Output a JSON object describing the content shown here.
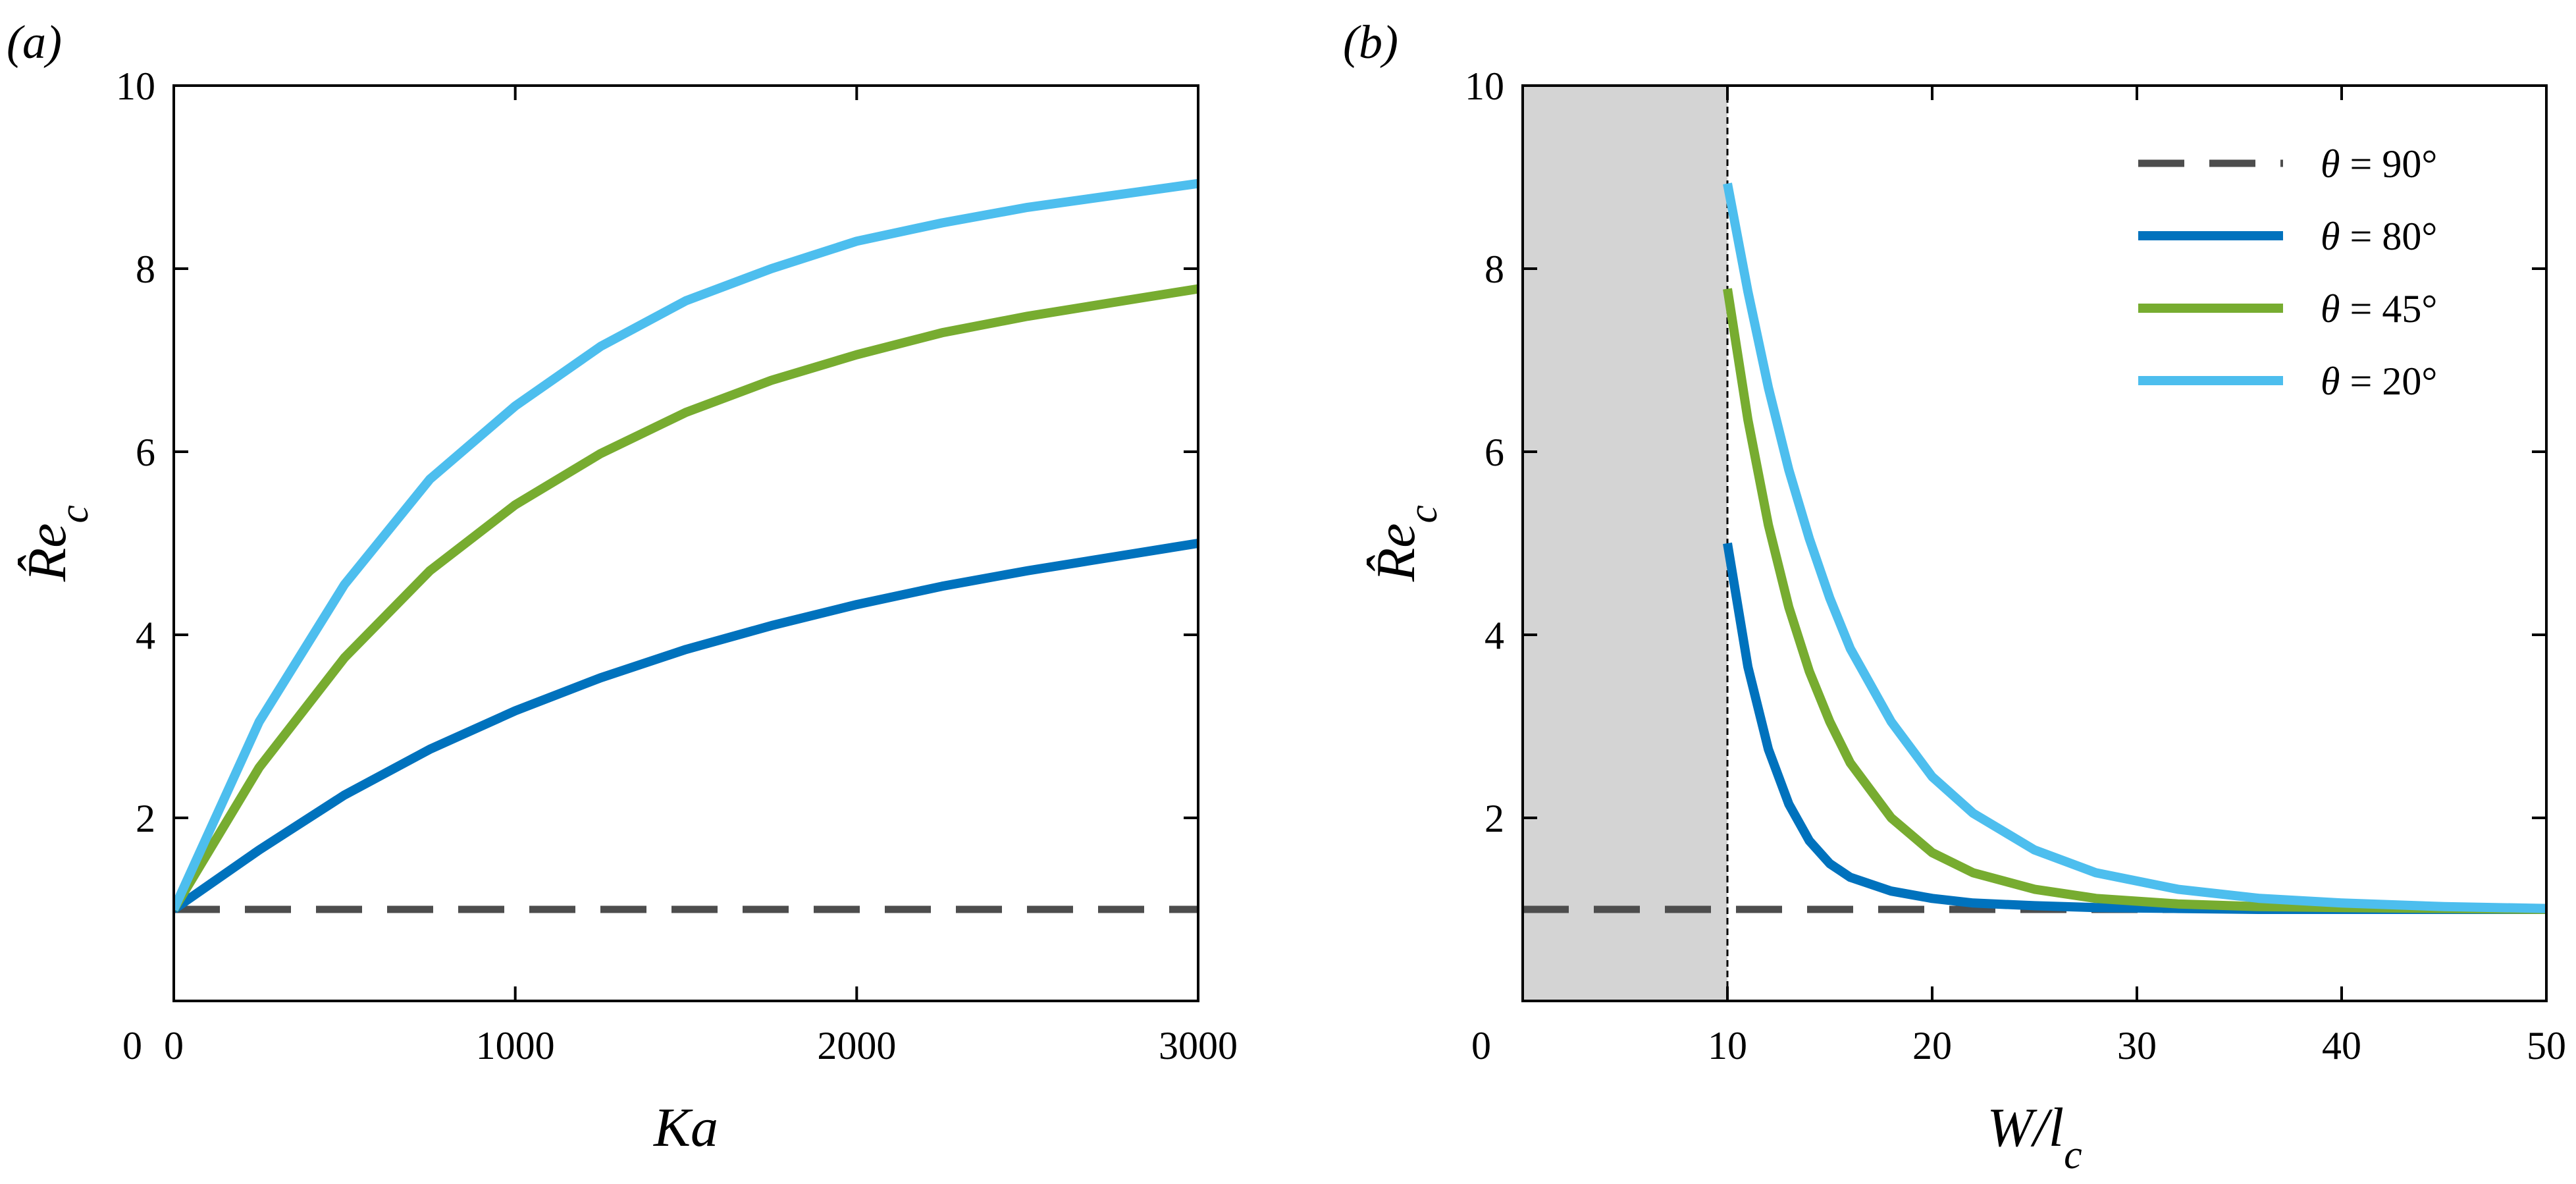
{
  "chart_data": [
    {
      "panel": "(a)",
      "type": "line",
      "xlabel": "Ka",
      "ylabel": "R̂e_c",
      "xlim": [
        0,
        3000
      ],
      "ylim": [
        0,
        10
      ],
      "xticks": [
        0,
        1000,
        2000,
        3000
      ],
      "yticks": [
        2,
        4,
        6,
        8,
        10
      ],
      "ytick_zero_label": "0",
      "series": [
        {
          "color": "#4d4d4d",
          "dashed": true,
          "x": [
            0,
            3000
          ],
          "y": [
            1.0,
            1.0
          ]
        },
        {
          "color": "#0072bd",
          "x": [
            0,
            250,
            500,
            750,
            1000,
            1250,
            1500,
            1750,
            2000,
            2250,
            2500,
            2750,
            3000
          ],
          "y": [
            1.0,
            1.65,
            2.25,
            2.75,
            3.17,
            3.53,
            3.84,
            4.1,
            4.33,
            4.53,
            4.7,
            4.85,
            5.0
          ]
        },
        {
          "color": "#77ac30",
          "x": [
            0,
            250,
            500,
            750,
            1000,
            1250,
            1500,
            1750,
            2000,
            2250,
            2500,
            2750,
            3000
          ],
          "y": [
            1.0,
            2.55,
            3.75,
            4.7,
            5.42,
            5.98,
            6.43,
            6.78,
            7.06,
            7.3,
            7.48,
            7.63,
            7.78
          ]
        },
        {
          "color": "#4dbeee",
          "x": [
            0,
            250,
            500,
            750,
            1000,
            1250,
            1500,
            1750,
            2000,
            2250,
            2500,
            2750,
            3000
          ],
          "y": [
            1.0,
            3.05,
            4.55,
            5.7,
            6.5,
            7.15,
            7.65,
            8.0,
            8.3,
            8.5,
            8.67,
            8.8,
            8.93
          ]
        }
      ]
    },
    {
      "panel": "(b)",
      "type": "line",
      "xlabel": "W/l_c",
      "ylabel": "R̂e_c",
      "xlim": [
        0,
        50
      ],
      "ylim": [
        0,
        10
      ],
      "xticks": [
        10,
        20,
        30,
        40,
        50
      ],
      "yticks": [
        2,
        4,
        6,
        8,
        10
      ],
      "ytick_zero_label": "0",
      "shaded_region": [
        0,
        10
      ],
      "vertical_line_x": 10,
      "legend_position": "top-right",
      "series": [
        {
          "name": "θ = 90°",
          "color": "#4d4d4d",
          "dashed": true,
          "x": [
            0,
            50
          ],
          "y": [
            1.0,
            1.0
          ]
        },
        {
          "name": "θ = 80°",
          "color": "#0072bd",
          "x": [
            10,
            11,
            12,
            13,
            14,
            15,
            16,
            18,
            20,
            22,
            25,
            28,
            32,
            36,
            40,
            45,
            50
          ],
          "y": [
            5.0,
            3.65,
            2.75,
            2.15,
            1.75,
            1.5,
            1.35,
            1.2,
            1.12,
            1.07,
            1.04,
            1.02,
            1.01,
            1.0,
            1.0,
            1.0,
            1.0
          ]
        },
        {
          "name": "θ = 45°",
          "color": "#77ac30",
          "x": [
            10,
            11,
            12,
            13,
            14,
            15,
            16,
            18,
            20,
            22,
            25,
            28,
            32,
            36,
            40,
            45,
            50
          ],
          "y": [
            7.78,
            6.35,
            5.2,
            4.3,
            3.6,
            3.05,
            2.6,
            2.0,
            1.62,
            1.4,
            1.22,
            1.12,
            1.06,
            1.03,
            1.02,
            1.01,
            1.0
          ]
        },
        {
          "name": "θ = 20°",
          "color": "#4dbeee",
          "x": [
            10,
            11,
            12,
            13,
            14,
            15,
            16,
            18,
            20,
            22,
            25,
            28,
            32,
            36,
            40,
            45,
            50
          ],
          "y": [
            8.93,
            7.75,
            6.7,
            5.8,
            5.05,
            4.4,
            3.85,
            3.05,
            2.45,
            2.05,
            1.65,
            1.4,
            1.22,
            1.12,
            1.07,
            1.03,
            1.01
          ]
        }
      ]
    }
  ]
}
